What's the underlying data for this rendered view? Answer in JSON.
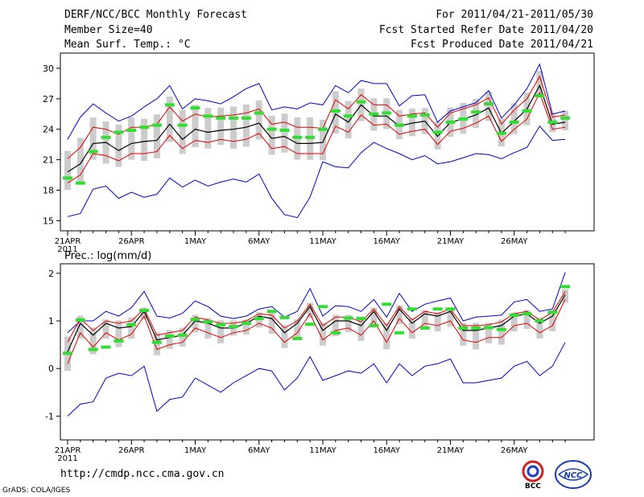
{
  "header": {
    "title": "DERF/NCC/BCC Monthly Forecast",
    "member_size": "Member Size=40",
    "variable": "Mean Surf. Temp.: °C",
    "period": "For 2011/04/21-2011/05/30",
    "refer_date": "Fcst Started Refer Date 2011/04/20",
    "produced_date": "Fcst Produced Date 2011/04/21"
  },
  "footer": {
    "url": "http://cmdp.ncc.cma.gov.cn",
    "credit": "GrADS: COLA/IGES",
    "logo_bcc": "BCC",
    "logo_ncc": "NCC"
  },
  "colors": {
    "ensemble_mean": "#000000",
    "spread": "#e00000",
    "extremes": "#0000d0",
    "box": "#cccccc",
    "median": "#33dd33"
  },
  "chart_data": [
    {
      "type": "box+line",
      "title": "Mean Surf. Temp.: °C",
      "xlabel": "",
      "ylabel": "",
      "x_tick_labels": [
        "21APR",
        "26APR",
        "1MAY",
        "6MAY",
        "11MAY",
        "16MAY",
        "21MAY",
        "26MAY"
      ],
      "x_tick_days": [
        0,
        5,
        10,
        15,
        20,
        25,
        30,
        35
      ],
      "year_label": "2011",
      "y_ticks": [
        15,
        18,
        21,
        24,
        27,
        30
      ],
      "ylim": [
        14,
        31.5
      ],
      "n_days": 40,
      "series": [
        {
          "name": "mean",
          "values": [
            19.8,
            20.6,
            22.6,
            22.7,
            21.9,
            22.6,
            22.8,
            22.9,
            24.5,
            23.0,
            24.0,
            23.7,
            23.9,
            24.0,
            24.2,
            24.6,
            23.1,
            23.3,
            22.6,
            22.6,
            22.7,
            25.5,
            24.7,
            26.4,
            25.3,
            25.3,
            24.3,
            24.6,
            24.8,
            23.3,
            24.7,
            25.0,
            25.4,
            26.1,
            23.6,
            24.8,
            26.0,
            28.3,
            24.5,
            24.7
          ]
        },
        {
          "name": "upper",
          "values": [
            21.1,
            22.2,
            24.2,
            24.0,
            23.5,
            24.2,
            24.2,
            24.5,
            26.2,
            24.8,
            25.5,
            25.2,
            25.3,
            25.4,
            25.6,
            26.0,
            24.5,
            24.7,
            24.2,
            24.2,
            24.1,
            26.9,
            26.0,
            27.4,
            26.4,
            26.4,
            25.3,
            25.5,
            25.6,
            24.2,
            25.6,
            26.0,
            26.4,
            27.1,
            24.5,
            25.9,
            27.0,
            29.2,
            25.2,
            25.4
          ]
        },
        {
          "name": "lower",
          "values": [
            18.7,
            19.5,
            21.6,
            21.4,
            20.9,
            21.6,
            21.6,
            21.8,
            23.4,
            22.1,
            22.9,
            22.7,
            23.0,
            22.8,
            23.0,
            23.6,
            22.1,
            22.3,
            21.6,
            21.6,
            21.6,
            24.3,
            23.7,
            25.4,
            24.4,
            24.5,
            23.5,
            23.8,
            24.0,
            22.5,
            23.8,
            24.1,
            24.6,
            25.3,
            22.8,
            24.0,
            25.0,
            27.6,
            24.0,
            24.2
          ]
        },
        {
          "name": "max",
          "values": [
            23.0,
            25.2,
            26.5,
            25.6,
            24.8,
            25.3,
            26.2,
            27.0,
            28.3,
            26.0,
            27.0,
            26.8,
            26.5,
            27.2,
            28.0,
            28.5,
            25.9,
            26.2,
            26.0,
            26.6,
            26.4,
            28.3,
            27.6,
            28.8,
            28.5,
            28.5,
            26.3,
            27.3,
            27.4,
            24.7,
            25.8,
            26.2,
            26.6,
            27.8,
            25.1,
            26.4,
            28.0,
            30.4,
            25.5,
            25.8
          ]
        },
        {
          "name": "min",
          "values": [
            15.4,
            15.7,
            18.1,
            18.4,
            17.2,
            17.8,
            17.3,
            17.6,
            19.2,
            18.3,
            19.0,
            18.4,
            18.8,
            19.1,
            18.8,
            19.6,
            17.2,
            15.6,
            15.3,
            17.3,
            20.8,
            20.3,
            20.2,
            21.7,
            22.7,
            22.1,
            21.6,
            21.0,
            21.4,
            20.6,
            20.8,
            21.2,
            21.6,
            21.5,
            21.1,
            21.7,
            22.2,
            24.3,
            22.9,
            23.0
          ]
        },
        {
          "name": "median",
          "values": [
            19.2,
            18.7,
            21.8,
            23.2,
            23.7,
            23.9,
            24.2,
            24.4,
            26.4,
            24.4,
            26.1,
            25.3,
            25.1,
            25.1,
            25.1,
            25.6,
            24.0,
            23.9,
            23.2,
            23.2,
            24.0,
            25.8,
            25.3,
            26.7,
            25.5,
            25.6,
            24.4,
            25.3,
            25.4,
            23.7,
            24.7,
            25.0,
            25.7,
            26.5,
            23.6,
            24.7,
            25.8,
            27.3,
            24.7,
            25.1
          ]
        }
      ]
    },
    {
      "type": "box+line",
      "title": "Prec.: log(mm/d)",
      "xlabel": "",
      "ylabel": "",
      "x_tick_labels": [
        "21APR",
        "26APR",
        "1MAY",
        "6MAY",
        "11MAY",
        "16MAY",
        "21MAY",
        "26MAY"
      ],
      "x_tick_days": [
        0,
        5,
        10,
        15,
        20,
        25,
        30,
        35
      ],
      "year_label": "2011",
      "y_ticks": [
        -1,
        0,
        1,
        2
      ],
      "ylim": [
        -1.5,
        2.2
      ],
      "n_days": 40,
      "series": [
        {
          "name": "mean",
          "values": [
            0.35,
            0.95,
            0.7,
            0.95,
            0.85,
            0.88,
            1.2,
            0.6,
            0.65,
            0.7,
            1.0,
            0.95,
            0.85,
            0.85,
            0.95,
            1.1,
            1.05,
            0.75,
            0.95,
            1.3,
            0.8,
            1.0,
            1.0,
            0.9,
            1.2,
            0.8,
            1.25,
            0.95,
            1.15,
            1.1,
            1.2,
            0.8,
            0.8,
            0.85,
            0.9,
            1.1,
            1.15,
            0.95,
            1.1,
            1.55
          ]
        },
        {
          "name": "upper",
          "values": [
            0.55,
            1.05,
            0.8,
            1.0,
            0.95,
            1.0,
            1.25,
            0.7,
            0.75,
            0.8,
            1.08,
            1.02,
            0.95,
            0.95,
            1.0,
            1.15,
            1.12,
            0.85,
            1.0,
            1.35,
            0.9,
            1.08,
            1.08,
            0.98,
            1.25,
            0.9,
            1.3,
            1.02,
            1.2,
            1.15,
            1.25,
            0.9,
            0.9,
            0.92,
            0.98,
            1.15,
            1.2,
            1.02,
            1.18,
            1.62
          ]
        },
        {
          "name": "lower",
          "values": [
            0.1,
            0.75,
            0.45,
            0.75,
            0.6,
            0.72,
            1.1,
            0.4,
            0.5,
            0.55,
            0.85,
            0.75,
            0.65,
            0.75,
            0.8,
            0.95,
            0.85,
            0.55,
            0.75,
            1.15,
            0.6,
            0.8,
            0.85,
            0.7,
            1.0,
            0.55,
            1.05,
            0.75,
            0.95,
            0.9,
            1.0,
            0.6,
            0.55,
            0.65,
            0.65,
            0.9,
            0.95,
            0.75,
            0.9,
            1.45
          ]
        },
        {
          "name": "max",
          "values": [
            0.75,
            1.0,
            1.0,
            1.2,
            1.1,
            1.28,
            1.62,
            1.1,
            1.06,
            1.16,
            1.42,
            1.3,
            1.1,
            1.05,
            1.1,
            1.25,
            1.3,
            1.08,
            1.2,
            1.68,
            1.1,
            1.32,
            1.3,
            1.2,
            1.45,
            1.08,
            1.58,
            1.2,
            1.35,
            1.42,
            1.48,
            1.0,
            1.08,
            1.1,
            1.12,
            1.4,
            1.45,
            1.2,
            1.25,
            2.02
          ]
        },
        {
          "name": "min",
          "values": [
            -1.0,
            -0.75,
            -0.7,
            -0.2,
            -0.1,
            -0.15,
            0.05,
            -0.9,
            -0.65,
            -0.6,
            -0.2,
            -0.35,
            -0.5,
            -0.3,
            -0.15,
            0.0,
            -0.05,
            -0.45,
            -0.2,
            0.25,
            -0.25,
            -0.15,
            -0.05,
            -0.1,
            0.1,
            -0.3,
            0.1,
            -0.15,
            0.05,
            0.1,
            0.2,
            -0.3,
            -0.3,
            -0.25,
            -0.2,
            0.05,
            0.15,
            -0.15,
            0.05,
            0.55
          ]
        },
        {
          "name": "median",
          "values": [
            0.32,
            1.02,
            0.4,
            0.45,
            0.58,
            0.92,
            1.22,
            0.55,
            0.68,
            0.7,
            1.03,
            0.98,
            0.92,
            0.88,
            0.95,
            1.05,
            1.2,
            1.07,
            0.63,
            0.93,
            1.3,
            0.75,
            1.06,
            1.05,
            0.9,
            1.35,
            0.75,
            1.25,
            0.85,
            1.25,
            1.25,
            0.85,
            0.85,
            0.86,
            0.82,
            1.12,
            1.15,
            1.0,
            1.18,
            1.72
          ]
        }
      ]
    }
  ]
}
